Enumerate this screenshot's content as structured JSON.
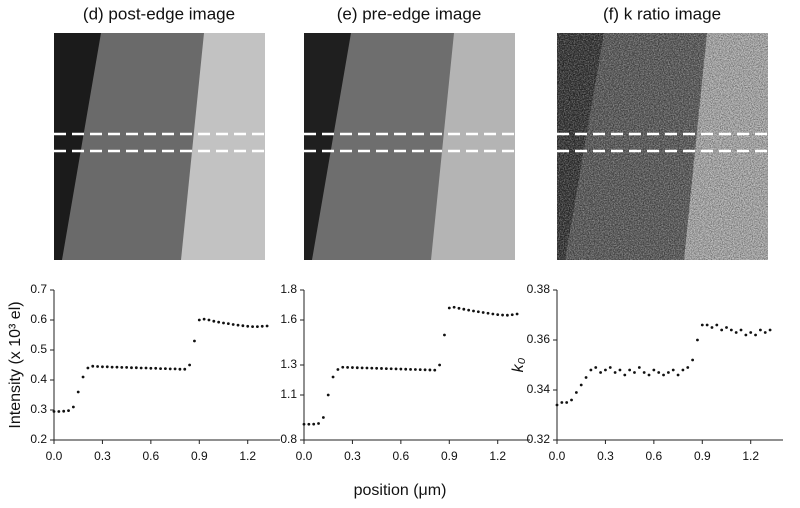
{
  "xlabel": "position (μm)",
  "chart_data": [
    {
      "type": "scatter",
      "title": "(d) post-edge image",
      "ylabel": "Intensity (x 10³ el)",
      "color": "#111111",
      "x": [
        0,
        0.03,
        0.06,
        0.09,
        0.12,
        0.15,
        0.18,
        0.21,
        0.24,
        0.27,
        0.3,
        0.33,
        0.36,
        0.39,
        0.42,
        0.45,
        0.48,
        0.51,
        0.54,
        0.57,
        0.6,
        0.63,
        0.66,
        0.69,
        0.72,
        0.75,
        0.78,
        0.81,
        0.84,
        0.87,
        0.9,
        0.93,
        0.96,
        0.99,
        1.02,
        1.05,
        1.08,
        1.11,
        1.14,
        1.17,
        1.2,
        1.23,
        1.26,
        1.29,
        1.32
      ],
      "values": [
        0.295,
        0.295,
        0.296,
        0.298,
        0.31,
        0.36,
        0.41,
        0.44,
        0.446,
        0.445,
        0.444,
        0.444,
        0.443,
        0.443,
        0.442,
        0.442,
        0.441,
        0.441,
        0.44,
        0.44,
        0.439,
        0.439,
        0.438,
        0.438,
        0.437,
        0.437,
        0.436,
        0.436,
        0.45,
        0.53,
        0.6,
        0.603,
        0.6,
        0.596,
        0.593,
        0.59,
        0.588,
        0.585,
        0.583,
        0.581,
        0.579,
        0.578,
        0.578,
        0.579,
        0.58
      ],
      "xlim": [
        0,
        1.4
      ],
      "ylim": [
        0.2,
        0.7
      ],
      "xticks": [
        {
          "value": 0,
          "label": "0.0"
        },
        0.3,
        0.6,
        0.9,
        1.2
      ],
      "yticks": [
        0.2,
        0.3,
        0.4,
        0.5,
        0.6,
        0.7
      ]
    },
    {
      "type": "scatter",
      "title": "(e) pre-edge image",
      "color": "#111111",
      "x": [
        0,
        0.03,
        0.06,
        0.09,
        0.12,
        0.15,
        0.18,
        0.21,
        0.24,
        0.27,
        0.3,
        0.33,
        0.36,
        0.39,
        0.42,
        0.45,
        0.48,
        0.51,
        0.54,
        0.57,
        0.6,
        0.63,
        0.66,
        0.69,
        0.72,
        0.75,
        0.78,
        0.81,
        0.84,
        0.87,
        0.9,
        0.93,
        0.96,
        0.99,
        1.02,
        1.05,
        1.08,
        1.11,
        1.14,
        1.17,
        1.2,
        1.23,
        1.26,
        1.29,
        1.32
      ],
      "values": [
        0.905,
        0.905,
        0.906,
        0.91,
        0.95,
        1.1,
        1.22,
        1.27,
        1.285,
        1.284,
        1.283,
        1.282,
        1.281,
        1.28,
        1.279,
        1.278,
        1.277,
        1.276,
        1.275,
        1.274,
        1.273,
        1.272,
        1.271,
        1.27,
        1.269,
        1.268,
        1.267,
        1.266,
        1.3,
        1.5,
        1.68,
        1.685,
        1.678,
        1.672,
        1.666,
        1.66,
        1.655,
        1.65,
        1.645,
        1.64,
        1.636,
        1.633,
        1.632,
        1.635,
        1.64
      ],
      "xlim": [
        0,
        1.4
      ],
      "ylim": [
        0.8,
        1.8
      ],
      "xticks": [
        {
          "value": 0,
          "label": "0.0"
        },
        0.3,
        0.6,
        0.9,
        1.2
      ],
      "yticks": [
        0.8,
        1.1,
        1.3,
        1.6,
        1.8
      ]
    },
    {
      "type": "scatter",
      "title": "(f) k ratio image",
      "ylabel": "k₀",
      "color": "#111111",
      "x": [
        0,
        0.03,
        0.06,
        0.09,
        0.12,
        0.15,
        0.18,
        0.21,
        0.24,
        0.27,
        0.3,
        0.33,
        0.36,
        0.39,
        0.42,
        0.45,
        0.48,
        0.51,
        0.54,
        0.57,
        0.6,
        0.63,
        0.66,
        0.69,
        0.72,
        0.75,
        0.78,
        0.81,
        0.84,
        0.87,
        0.9,
        0.93,
        0.96,
        0.99,
        1.02,
        1.05,
        1.08,
        1.11,
        1.14,
        1.17,
        1.2,
        1.23,
        1.26,
        1.29,
        1.32
      ],
      "values": [
        0.334,
        0.335,
        0.335,
        0.336,
        0.339,
        0.342,
        0.345,
        0.348,
        0.349,
        0.347,
        0.348,
        0.349,
        0.347,
        0.348,
        0.346,
        0.348,
        0.347,
        0.349,
        0.347,
        0.346,
        0.348,
        0.347,
        0.346,
        0.347,
        0.348,
        0.346,
        0.348,
        0.349,
        0.352,
        0.36,
        0.366,
        0.366,
        0.365,
        0.366,
        0.364,
        0.365,
        0.364,
        0.363,
        0.364,
        0.362,
        0.363,
        0.362,
        0.364,
        0.363,
        0.364
      ],
      "xlim": [
        0,
        1.4
      ],
      "ylim": [
        0.32,
        0.38
      ],
      "xticks": [
        {
          "value": 0,
          "label": "0.0"
        },
        0.3,
        0.6,
        0.9,
        1.2
      ],
      "yticks": [
        0.32,
        0.34,
        0.36,
        0.38
      ]
    }
  ]
}
